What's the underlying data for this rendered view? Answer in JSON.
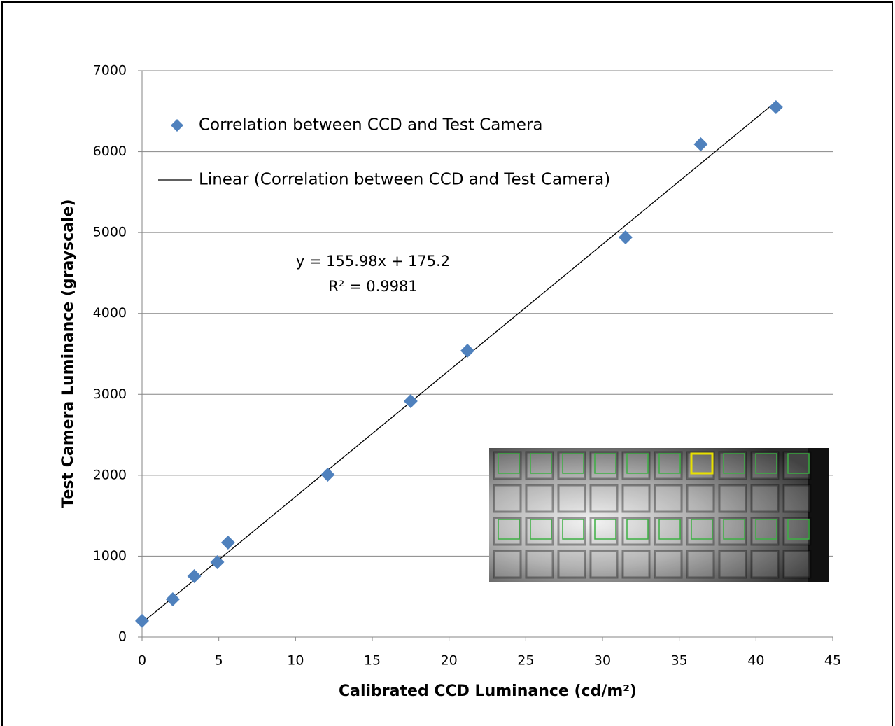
{
  "chart_data": {
    "type": "scatter",
    "xlabel": "Calibrated CCD Luminance (cd/m²)",
    "ylabel": "Test Camera Luminance (grayscale)",
    "series": [
      {
        "name": "Correlation between CCD and Test Camera",
        "color": "#4f81bd",
        "marker": "diamond",
        "x": [
          0,
          2.0,
          3.4,
          4.9,
          5.6,
          12.1,
          17.5,
          21.2,
          31.5,
          36.4,
          41.3
        ],
        "values": [
          200,
          467,
          753,
          926,
          1168,
          2007,
          2916,
          3539,
          4941,
          6092,
          6550
        ]
      }
    ],
    "trendline": {
      "name": "Linear (Correlation between CCD and Test Camera)",
      "color": "#000000",
      "slope": 155.98,
      "intercept": 175.2,
      "equation_label": "y = 155.98x + 175.2",
      "r2_label": "R² = 0.9981"
    },
    "xlim": [
      0,
      45
    ],
    "xticks": [
      0,
      5,
      10,
      15,
      20,
      25,
      30,
      35,
      40,
      45
    ],
    "ylim": [
      0,
      7000
    ],
    "yticks": [
      0,
      1000,
      2000,
      3000,
      4000,
      5000,
      6000,
      7000
    ],
    "grid": true,
    "legend": "upper left"
  }
}
